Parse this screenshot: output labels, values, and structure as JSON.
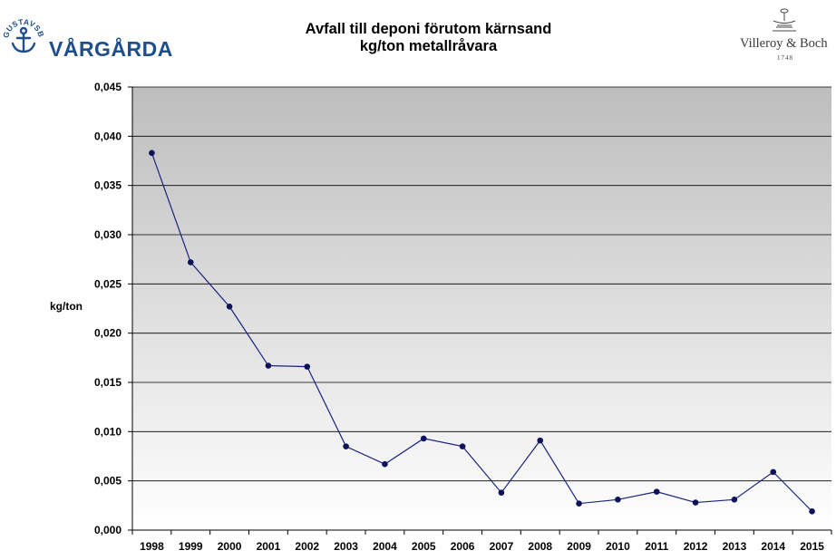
{
  "header": {
    "brand_left": "VÅRGÅRDA",
    "brand_left_ring": "GUSTAVSBERG",
    "brand_right": "Villeroy & Boch",
    "brand_right_year": "1748"
  },
  "chart_data": {
    "type": "line",
    "title": "Avfall till deponi förutom kärnsand",
    "subtitle": "kg/ton metallråvara",
    "xlabel": "",
    "ylabel": "kg/ton",
    "categories": [
      "1998",
      "1999",
      "2000",
      "2001",
      "2002",
      "2003",
      "2004",
      "2005",
      "2006",
      "2007",
      "2008",
      "2009",
      "2010",
      "2011",
      "2012",
      "2013",
      "2014",
      "2015"
    ],
    "series": [
      {
        "values": [
          0.0383,
          0.0272,
          0.0227,
          0.0167,
          0.0166,
          0.0085,
          0.0067,
          0.0093,
          0.0085,
          0.0038,
          0.0091,
          0.0027,
          0.0031,
          0.0039,
          0.0028,
          0.0031,
          0.0059,
          0.0019
        ]
      }
    ],
    "ylim": [
      0,
      0.045
    ],
    "yticks": [
      "0,000",
      "0,005",
      "0,010",
      "0,015",
      "0,020",
      "0,025",
      "0,030",
      "0,035",
      "0,040",
      "0,045"
    ],
    "grid": true,
    "legend": "none",
    "colors": {
      "line": "#1a237e",
      "marker": "#0d1259",
      "plot_top": "#bdbdbd",
      "plot_bottom": "#ffffff",
      "grid": "#000000"
    }
  }
}
